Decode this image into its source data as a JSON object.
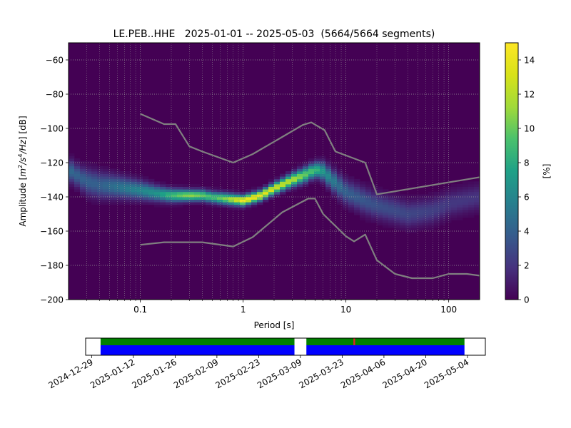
{
  "chart_data": [
    {
      "type": "heatmap",
      "title": "LE.PEB..HHE   2025-01-01 -- 2025-05-03  (5664/5664 segments)",
      "xlabel": "Period [s]",
      "ylabel_parts": [
        "Amplitude [",
        "m",
        "2",
        "/",
        "s",
        "4",
        "/",
        "Hz",
        "] [dB]"
      ],
      "x_scale": "log",
      "xlim": [
        0.02,
        200
      ],
      "ylim": [
        -200,
        -50
      ],
      "x_ticks": [
        {
          "value": 0.1,
          "label": "0.1"
        },
        {
          "value": 1,
          "label": "1"
        },
        {
          "value": 10,
          "label": "10"
        },
        {
          "value": 100,
          "label": "100"
        }
      ],
      "y_ticks": [
        {
          "value": -60,
          "label": "−60"
        },
        {
          "value": -80,
          "label": "−80"
        },
        {
          "value": -100,
          "label": "−100"
        },
        {
          "value": -120,
          "label": "−120"
        },
        {
          "value": -140,
          "label": "−140"
        },
        {
          "value": -160,
          "label": "−160"
        },
        {
          "value": -180,
          "label": "−180"
        },
        {
          "value": -200,
          "label": "−200"
        }
      ],
      "grid": true,
      "colormap": "viridis",
      "colorbar": {
        "label": "[%]",
        "range": [
          0,
          15
        ],
        "ticks": [
          {
            "value": 0,
            "label": "0"
          },
          {
            "value": 2,
            "label": "2"
          },
          {
            "value": 4,
            "label": "4"
          },
          {
            "value": 6,
            "label": "6"
          },
          {
            "value": 8,
            "label": "8"
          },
          {
            "value": 10,
            "label": "10"
          },
          {
            "value": 12,
            "label": "12"
          },
          {
            "value": 14,
            "label": "14"
          }
        ]
      },
      "density_ridge": [
        {
          "x": 0.02,
          "y": -124,
          "w": 6,
          "peak": 4.5
        },
        {
          "x": 0.025,
          "y": -128,
          "w": 6,
          "peak": 4
        },
        {
          "x": 0.03,
          "y": -131,
          "w": 7,
          "peak": 4
        },
        {
          "x": 0.04,
          "y": -133,
          "w": 7,
          "peak": 4
        },
        {
          "x": 0.06,
          "y": -134,
          "w": 6,
          "peak": 5
        },
        {
          "x": 0.1,
          "y": -136,
          "w": 5,
          "peak": 6
        },
        {
          "x": 0.15,
          "y": -138,
          "w": 4,
          "peak": 7
        },
        {
          "x": 0.2,
          "y": -139,
          "w": 3.5,
          "peak": 9
        },
        {
          "x": 0.3,
          "y": -139,
          "w": 3,
          "peak": 11
        },
        {
          "x": 0.4,
          "y": -139,
          "w": 3,
          "peak": 10
        },
        {
          "x": 0.5,
          "y": -140,
          "w": 3,
          "peak": 9
        },
        {
          "x": 0.7,
          "y": -141,
          "w": 3,
          "peak": 11
        },
        {
          "x": 1,
          "y": -142,
          "w": 2.8,
          "peak": 14.5
        },
        {
          "x": 1.5,
          "y": -139,
          "w": 2.8,
          "peak": 14
        },
        {
          "x": 2,
          "y": -135,
          "w": 3,
          "peak": 13
        },
        {
          "x": 3,
          "y": -130,
          "w": 3.5,
          "peak": 12
        },
        {
          "x": 4,
          "y": -127,
          "w": 4,
          "peak": 10
        },
        {
          "x": 5,
          "y": -124,
          "w": 4,
          "peak": 9
        },
        {
          "x": 6,
          "y": -125,
          "w": 5,
          "peak": 7
        },
        {
          "x": 8,
          "y": -132,
          "w": 6,
          "peak": 5
        },
        {
          "x": 10,
          "y": -137,
          "w": 6.5,
          "peak": 4
        },
        {
          "x": 15,
          "y": -142,
          "w": 7,
          "peak": 3.5
        },
        {
          "x": 20,
          "y": -145,
          "w": 7,
          "peak": 3.2
        },
        {
          "x": 40,
          "y": -150,
          "w": 7,
          "peak": 2.8
        },
        {
          "x": 70,
          "y": -148,
          "w": 7,
          "peak": 2.5
        },
        {
          "x": 100,
          "y": -144,
          "w": 7,
          "peak": 2.2
        },
        {
          "x": 200,
          "y": -140,
          "w": 7,
          "peak": 2
        }
      ],
      "series": [
        {
          "x": [
            0.1,
            0.17,
            0.22,
            0.3,
            0.4,
            0.8,
            1.24,
            2.4,
            3.8,
            4.6,
            6.2,
            7.9,
            15.4,
            20,
            200
          ],
          "y": [
            -91.5,
            -97.5,
            -97.5,
            -110.5,
            -113.5,
            -120,
            -115,
            -105,
            -98,
            -96.5,
            -101,
            -113.5,
            -120,
            -138.5,
            -128.5
          ]
        },
        {
          "x": [
            0.1,
            0.17,
            0.4,
            0.8,
            1.24,
            2.4,
            4.3,
            5.0,
            6.0,
            10,
            12,
            15.4,
            20,
            30,
            44,
            70,
            100,
            150,
            200
          ],
          "y": [
            -168,
            -166.5,
            -166.5,
            -169,
            -163.5,
            -149,
            -141,
            -141,
            -150,
            -163,
            -166,
            -162,
            -177,
            -185,
            -187.5,
            -187.5,
            -185,
            -185,
            -186
          ]
        }
      ]
    },
    {
      "type": "timeline",
      "x_ticks": [
        "2024-12-29",
        "2025-01-12",
        "2025-01-26",
        "2025-02-09",
        "2025-02-23",
        "2025-03-09",
        "2025-03-23",
        "2025-04-06",
        "2025-04-20",
        "2025-05-04"
      ],
      "xlim": [
        "2024-12-27",
        "2025-05-10"
      ],
      "coverage_segments": [
        {
          "start": "2025-01-01",
          "end": "2025-03-07"
        },
        {
          "start": "2025-03-11",
          "end": "2025-05-03"
        }
      ],
      "marker": {
        "date": "2025-03-27",
        "color": "#d62728"
      },
      "colors": {
        "coverage_top": "#008000",
        "coverage_bottom": "#0000ff"
      }
    }
  ]
}
